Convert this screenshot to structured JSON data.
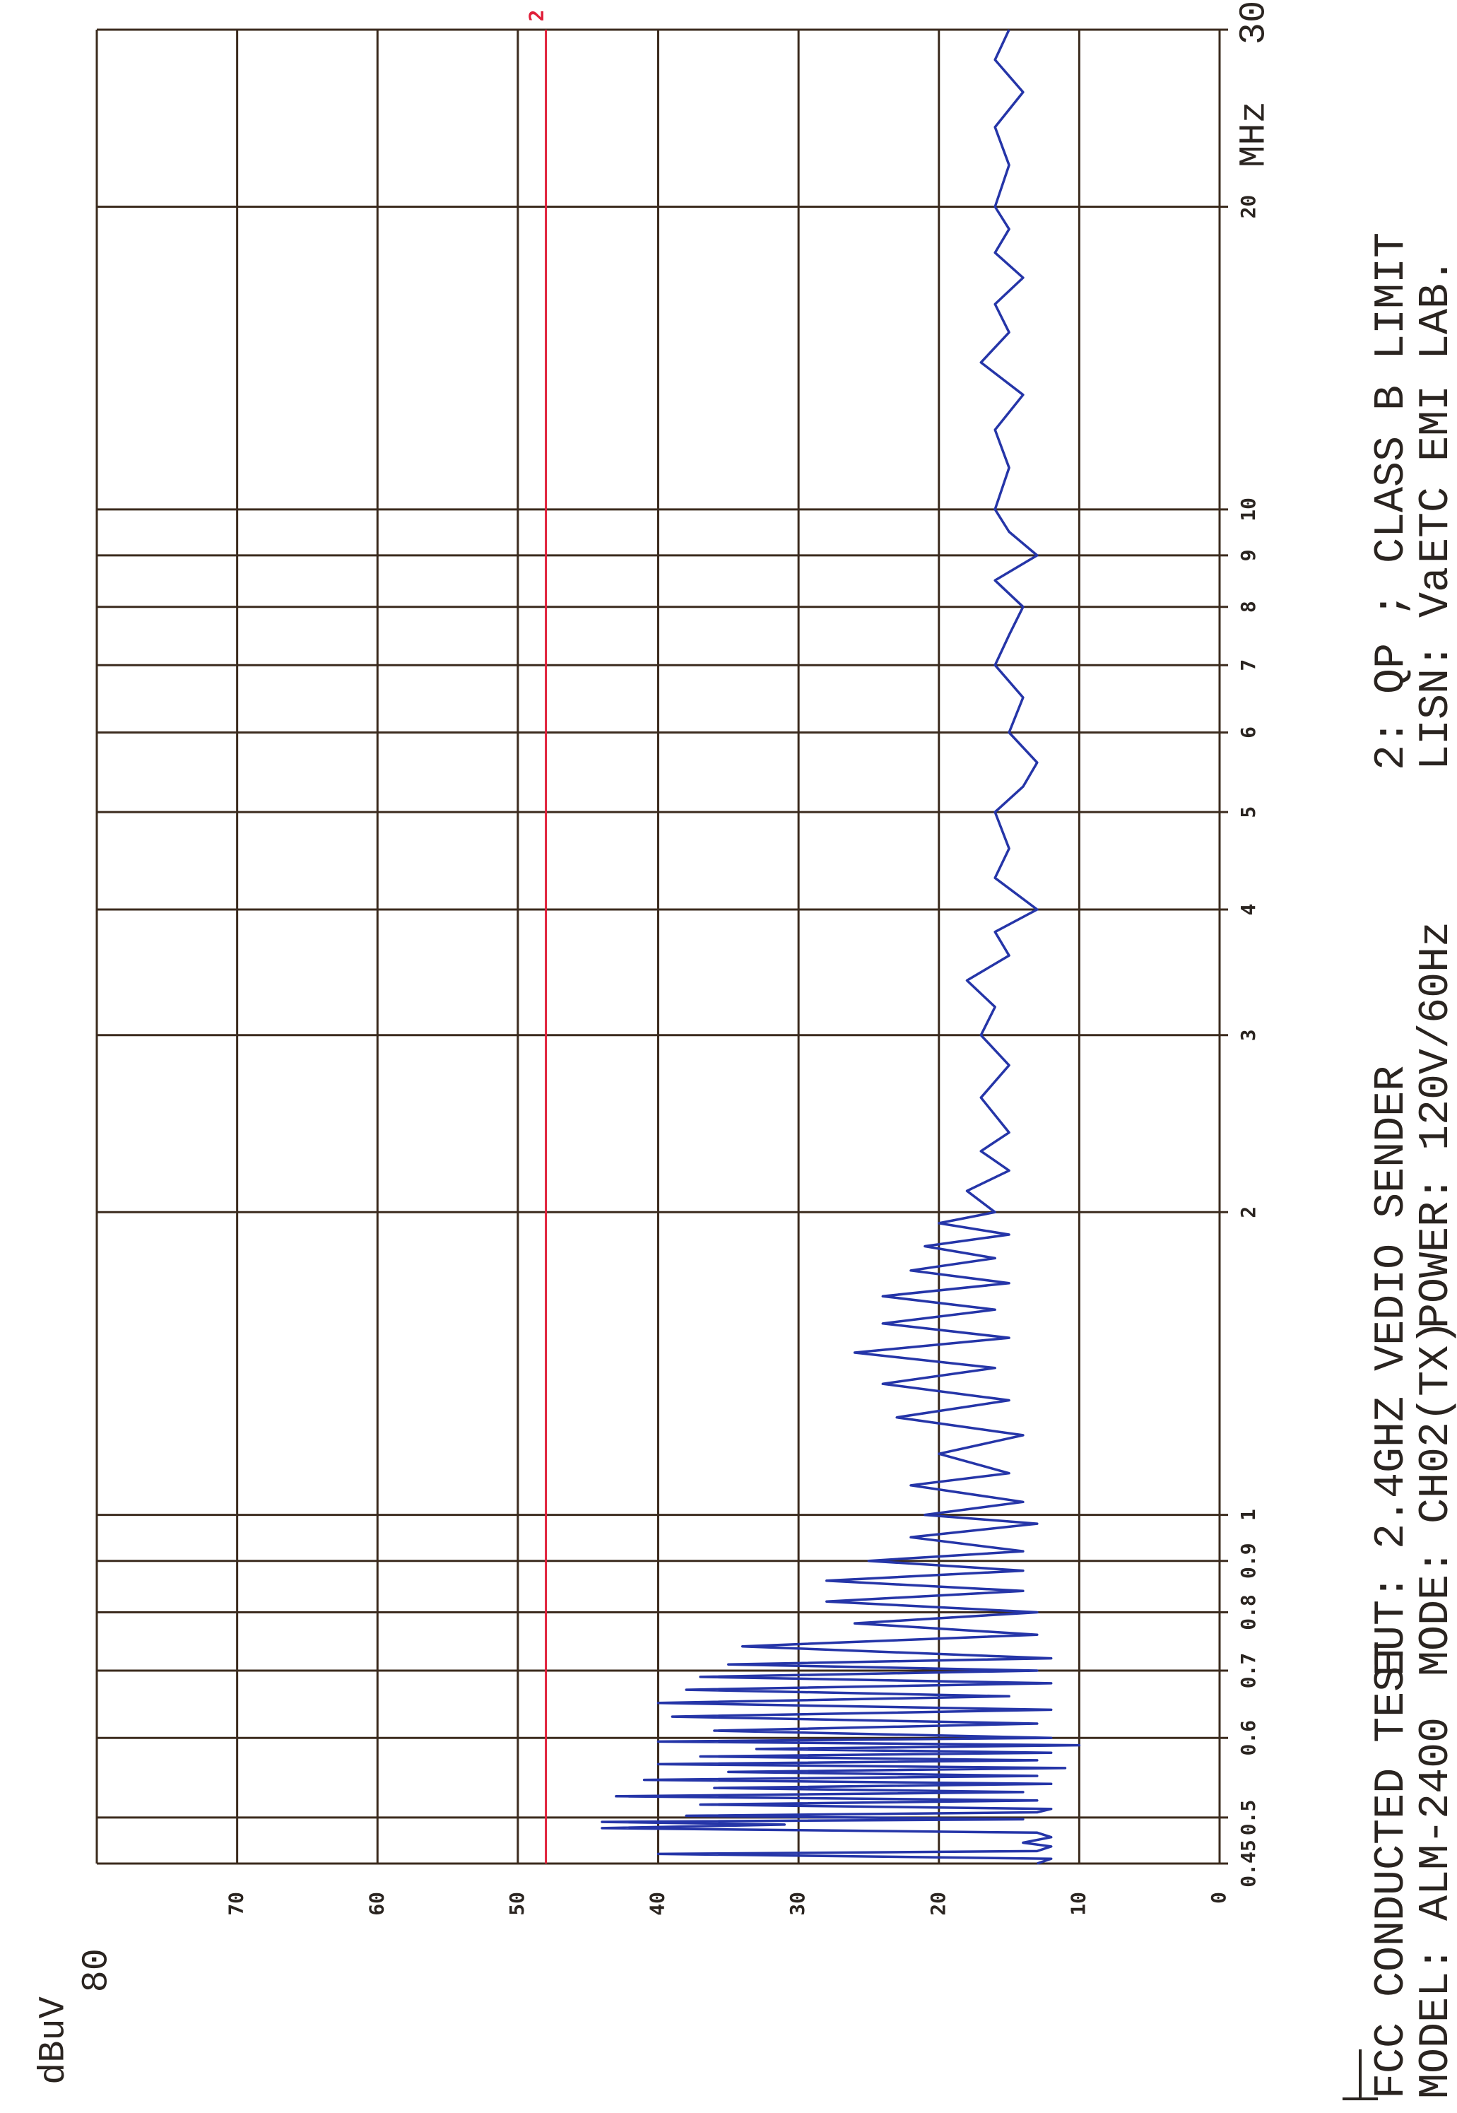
{
  "chart_data": {
    "type": "line",
    "y_label": "dBuV",
    "x_unit": "MHz",
    "log_x": true,
    "grid": true,
    "xlim": [
      0.45,
      30
    ],
    "xticks": [
      0.45,
      0.5,
      0.6,
      0.7,
      0.8,
      0.9,
      1,
      2,
      3,
      4,
      5,
      6,
      7,
      8,
      9,
      10,
      20,
      30
    ],
    "ylim": [
      0,
      80
    ],
    "yticks": [
      0,
      10,
      20,
      30,
      40,
      50,
      60,
      70,
      80
    ],
    "limit": {
      "value": 48,
      "label": "2",
      "color": "#e0203a"
    },
    "x": [
      0.45,
      0.455,
      0.46,
      0.463,
      0.468,
      0.472,
      0.478,
      0.483,
      0.488,
      0.492,
      0.495,
      0.498,
      0.502,
      0.506,
      0.51,
      0.515,
      0.52,
      0.525,
      0.53,
      0.535,
      0.54,
      0.545,
      0.55,
      0.555,
      0.56,
      0.565,
      0.57,
      0.575,
      0.58,
      0.585,
      0.59,
      0.595,
      0.6,
      0.61,
      0.62,
      0.63,
      0.64,
      0.65,
      0.66,
      0.67,
      0.68,
      0.69,
      0.7,
      0.71,
      0.72,
      0.74,
      0.76,
      0.78,
      0.8,
      0.82,
      0.84,
      0.86,
      0.88,
      0.9,
      0.92,
      0.95,
      0.98,
      1.0,
      1.03,
      1.07,
      1.1,
      1.15,
      1.2,
      1.25,
      1.3,
      1.35,
      1.4,
      1.45,
      1.5,
      1.55,
      1.6,
      1.65,
      1.7,
      1.75,
      1.8,
      1.85,
      1.9,
      1.95,
      2.0,
      2.1,
      2.2,
      2.3,
      2.4,
      2.6,
      2.8,
      3.0,
      3.2,
      3.4,
      3.6,
      3.8,
      4.0,
      4.3,
      4.6,
      5.0,
      5.3,
      5.6,
      6.0,
      6.5,
      7.0,
      7.5,
      8.0,
      8.5,
      9.0,
      9.5,
      10,
      11,
      12,
      13,
      14,
      15,
      16,
      17,
      18,
      19,
      20,
      22,
      24,
      26,
      28,
      30
    ],
    "series": [
      {
        "color": "#2535a8",
        "values": [
          13,
          12,
          40,
          13,
          12,
          14,
          12,
          13,
          44,
          31,
          44,
          14,
          38,
          13,
          12,
          37,
          13,
          43,
          14,
          36,
          12,
          41,
          13,
          35,
          11,
          40,
          13,
          37,
          12,
          33,
          10,
          40,
          12,
          36,
          13,
          39,
          12,
          40,
          15,
          38,
          12,
          37,
          13,
          35,
          12,
          34,
          13,
          26,
          13,
          28,
          14,
          28,
          14,
          25,
          14,
          22,
          13,
          21,
          14,
          22,
          15,
          20,
          14,
          23,
          15,
          24,
          16,
          26,
          15,
          24,
          16,
          24,
          15,
          22,
          16,
          21,
          15,
          20,
          16,
          18,
          15,
          17,
          15,
          17,
          15,
          17,
          16,
          18,
          15,
          16,
          13,
          16,
          15,
          16,
          14,
          13,
          15,
          14,
          16,
          15,
          14,
          16,
          13,
          15,
          16,
          15,
          16,
          14,
          17,
          15,
          16,
          14,
          16,
          15,
          16,
          15,
          16,
          14,
          16,
          15
        ]
      }
    ],
    "annotations": [
      "FCC CONDUCTED TEST",
      "MODEL: ALM-2400",
      "EUT: 2.4GHZ VEDIO SENDER",
      "MODE: CH02(TX)",
      "POWER: 120V/60Hz",
      "2: QP ;",
      "LISN: Va",
      "CLASS B LIMIT",
      "ETC EMI LAB."
    ]
  }
}
